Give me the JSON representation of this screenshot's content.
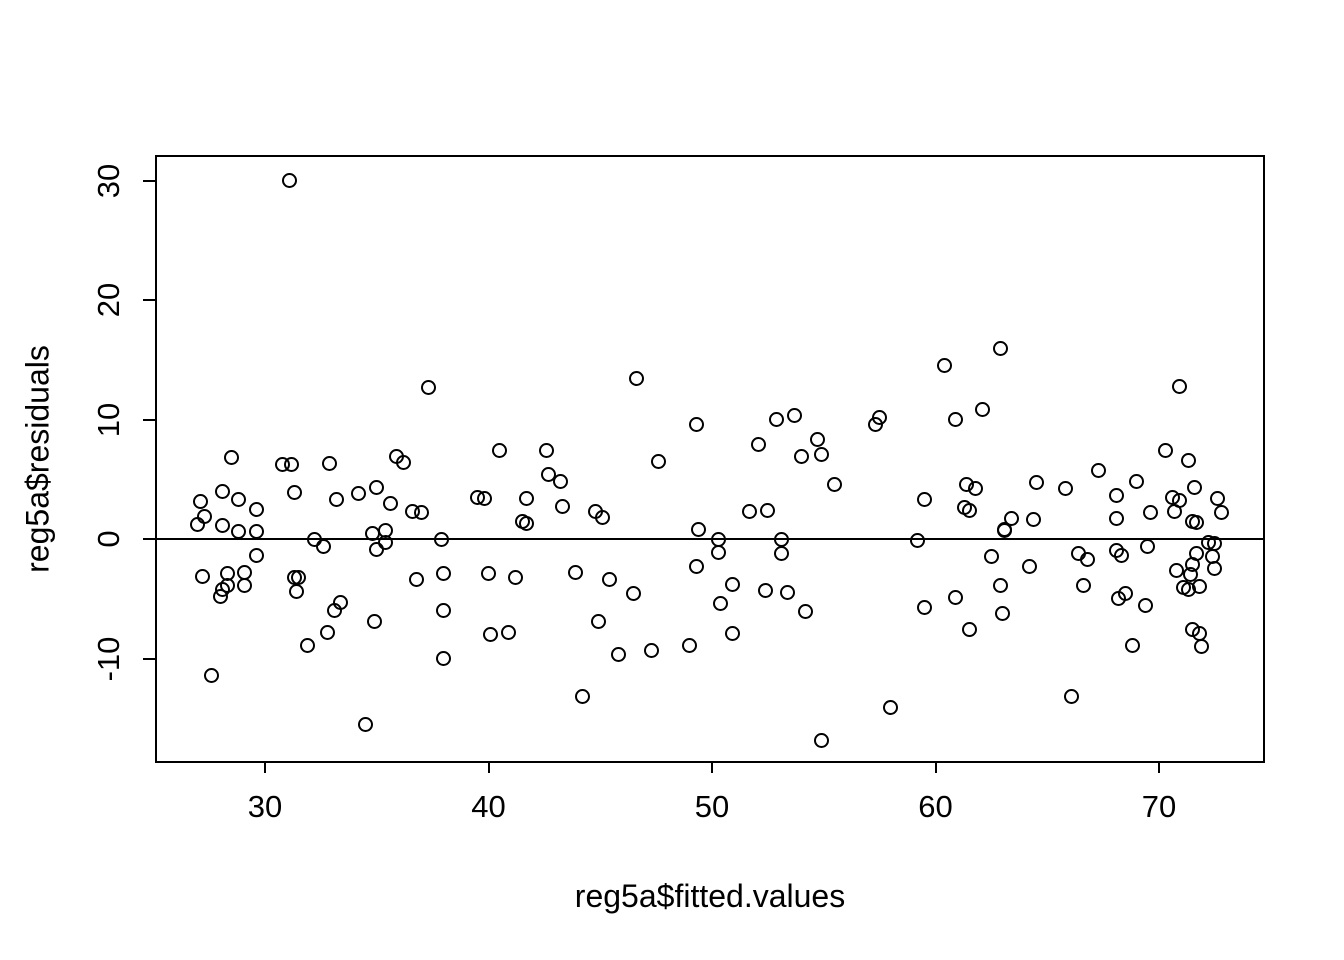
{
  "figure": {
    "background_color": "#ffffff",
    "foreground_color": "#000000",
    "x_title": "reg5a$fitted.values",
    "y_title": "reg5a$residuals"
  },
  "chart_data": {
    "type": "scatter",
    "title": "",
    "xlabel": "reg5a$fitted.values",
    "ylabel": "reg5a$residuals",
    "x_ticks": [
      30,
      40,
      50,
      60,
      70
    ],
    "y_ticks": [
      -10,
      0,
      10,
      20,
      30
    ],
    "xlim": [
      25.2,
      74.7
    ],
    "ylim": [
      -18.5,
      32.0
    ],
    "grid": false,
    "marker": "open-circle",
    "reference_line_y": 0,
    "points": [
      [
        27.0,
        1.2
      ],
      [
        27.1,
        3.1
      ],
      [
        27.3,
        1.9
      ],
      [
        27.2,
        -3.1
      ],
      [
        27.6,
        -11.4
      ],
      [
        28.1,
        4.0
      ],
      [
        28.1,
        1.1
      ],
      [
        28.3,
        -2.9
      ],
      [
        28.3,
        -3.9
      ],
      [
        28.1,
        -4.2
      ],
      [
        28.0,
        -4.8
      ],
      [
        28.5,
        6.8
      ],
      [
        28.8,
        3.3
      ],
      [
        28.8,
        0.6
      ],
      [
        29.1,
        -2.8
      ],
      [
        29.1,
        -3.9
      ],
      [
        29.6,
        2.5
      ],
      [
        29.6,
        0.6
      ],
      [
        29.6,
        -1.4
      ],
      [
        30.8,
        6.2
      ],
      [
        31.2,
        6.2
      ],
      [
        31.1,
        30.0
      ],
      [
        31.3,
        3.9
      ],
      [
        31.3,
        -3.2
      ],
      [
        31.5,
        -3.2
      ],
      [
        31.4,
        -4.4
      ],
      [
        31.9,
        -8.9
      ],
      [
        32.2,
        0.0
      ],
      [
        32.6,
        -0.6
      ],
      [
        32.9,
        6.3
      ],
      [
        32.8,
        -7.8
      ],
      [
        33.1,
        -6.0
      ],
      [
        33.4,
        -5.3
      ],
      [
        33.2,
        3.3
      ],
      [
        34.2,
        3.8
      ],
      [
        34.5,
        -15.5
      ],
      [
        34.8,
        0.5
      ],
      [
        34.9,
        -6.9
      ],
      [
        35.0,
        4.3
      ],
      [
        35.4,
        0.7
      ],
      [
        35.4,
        -0.3
      ],
      [
        35.0,
        -0.9
      ],
      [
        35.6,
        3.0
      ],
      [
        35.9,
        6.9
      ],
      [
        36.2,
        6.4
      ],
      [
        36.6,
        2.3
      ],
      [
        37.0,
        2.2
      ],
      [
        36.8,
        -3.4
      ],
      [
        37.3,
        12.7
      ],
      [
        37.9,
        0.0
      ],
      [
        38.0,
        -2.9
      ],
      [
        38.0,
        -6.0
      ],
      [
        38.0,
        -10.0
      ],
      [
        39.5,
        3.5
      ],
      [
        39.8,
        3.4
      ],
      [
        40.0,
        -2.9
      ],
      [
        40.1,
        -8.0
      ],
      [
        40.9,
        -7.8
      ],
      [
        40.5,
        7.4
      ],
      [
        41.5,
        1.5
      ],
      [
        41.7,
        1.3
      ],
      [
        41.7,
        3.4
      ],
      [
        41.2,
        -3.2
      ],
      [
        42.6,
        7.4
      ],
      [
        42.7,
        5.4
      ],
      [
        43.2,
        4.8
      ],
      [
        43.3,
        2.7
      ],
      [
        43.9,
        -2.8
      ],
      [
        44.2,
        -13.2
      ],
      [
        44.8,
        2.3
      ],
      [
        45.1,
        1.8
      ],
      [
        44.9,
        -6.9
      ],
      [
        45.4,
        -3.4
      ],
      [
        45.8,
        -9.7
      ],
      [
        46.5,
        -4.6
      ],
      [
        46.6,
        13.4
      ],
      [
        47.6,
        6.5
      ],
      [
        47.3,
        -9.3
      ],
      [
        49.0,
        -8.9
      ],
      [
        49.3,
        9.6
      ],
      [
        49.4,
        0.8
      ],
      [
        49.3,
        -2.3
      ],
      [
        50.3,
        0.0
      ],
      [
        50.3,
        -1.1
      ],
      [
        50.4,
        -5.4
      ],
      [
        50.9,
        -3.8
      ],
      [
        50.9,
        -7.9
      ],
      [
        51.7,
        2.3
      ],
      [
        52.5,
        2.4
      ],
      [
        52.1,
        7.9
      ],
      [
        52.9,
        10.0
      ],
      [
        53.7,
        10.3
      ],
      [
        53.1,
        0.0
      ],
      [
        53.1,
        -1.2
      ],
      [
        52.4,
        -4.3
      ],
      [
        53.4,
        -4.5
      ],
      [
        54.0,
        6.9
      ],
      [
        54.9,
        7.1
      ],
      [
        54.7,
        8.3
      ],
      [
        54.2,
        -6.1
      ],
      [
        54.9,
        -16.9
      ],
      [
        55.5,
        4.6
      ],
      [
        57.3,
        9.6
      ],
      [
        57.5,
        10.2
      ],
      [
        58.0,
        -14.1
      ],
      [
        59.2,
        -0.1
      ],
      [
        59.5,
        3.3
      ],
      [
        59.5,
        -5.7
      ],
      [
        60.4,
        14.5
      ],
      [
        60.9,
        10.0
      ],
      [
        60.9,
        -4.9
      ],
      [
        61.4,
        4.6
      ],
      [
        61.8,
        4.2
      ],
      [
        61.3,
        2.6
      ],
      [
        61.5,
        2.4
      ],
      [
        61.5,
        -7.6
      ],
      [
        62.1,
        10.8
      ],
      [
        62.9,
        15.9
      ],
      [
        62.5,
        -1.5
      ],
      [
        62.9,
        -3.9
      ],
      [
        63.0,
        -6.2
      ],
      [
        63.1,
        0.8
      ],
      [
        63.1,
        0.7
      ],
      [
        63.4,
        1.7
      ],
      [
        64.4,
        1.6
      ],
      [
        64.5,
        4.7
      ],
      [
        64.2,
        -2.3
      ],
      [
        65.8,
        4.2
      ],
      [
        66.4,
        -1.2
      ],
      [
        66.8,
        -1.7
      ],
      [
        66.1,
        -13.2
      ],
      [
        66.6,
        -3.9
      ],
      [
        67.3,
        5.7
      ],
      [
        68.1,
        3.6
      ],
      [
        68.1,
        1.7
      ],
      [
        68.1,
        -1.0
      ],
      [
        68.3,
        -1.4
      ],
      [
        68.2,
        -5.0
      ],
      [
        68.5,
        -4.6
      ],
      [
        68.8,
        -8.9
      ],
      [
        69.0,
        4.8
      ],
      [
        69.6,
        2.2
      ],
      [
        69.5,
        -0.6
      ],
      [
        69.4,
        -5.6
      ],
      [
        70.3,
        7.4
      ],
      [
        70.9,
        12.8
      ],
      [
        70.6,
        3.5
      ],
      [
        70.9,
        3.2
      ],
      [
        70.7,
        2.3
      ],
      [
        71.3,
        6.6
      ],
      [
        71.6,
        4.3
      ],
      [
        71.5,
        1.5
      ],
      [
        71.7,
        1.4
      ],
      [
        72.6,
        3.4
      ],
      [
        72.8,
        2.2
      ],
      [
        72.2,
        -0.3
      ],
      [
        72.5,
        -0.4
      ],
      [
        71.7,
        -1.2
      ],
      [
        72.4,
        -1.5
      ],
      [
        71.5,
        -2.1
      ],
      [
        70.8,
        -2.6
      ],
      [
        71.4,
        -3.0
      ],
      [
        72.5,
        -2.5
      ],
      [
        71.1,
        -4.1
      ],
      [
        71.3,
        -4.2
      ],
      [
        71.8,
        -4.0
      ],
      [
        71.5,
        -7.6
      ],
      [
        71.8,
        -7.9
      ],
      [
        71.9,
        -9.0
      ]
    ]
  }
}
